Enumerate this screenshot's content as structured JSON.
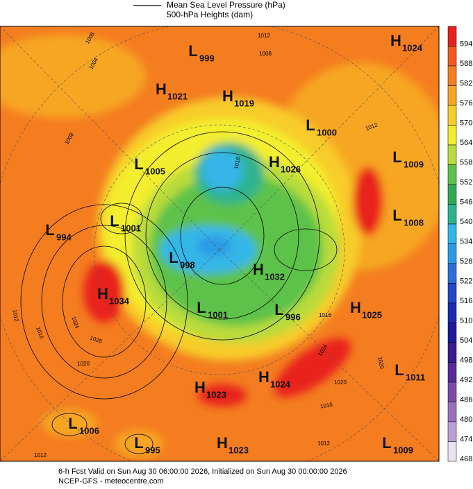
{
  "legend": {
    "pressure": "Mean Sea Level Pressure (hPa)",
    "heights": "500-hPa Heights (dam)"
  },
  "colorbar": [
    {
      "label": "594",
      "color": "#e8211e"
    },
    {
      "label": "588",
      "color": "#f4581c"
    },
    {
      "label": "582",
      "color": "#f47d20"
    },
    {
      "label": "576",
      "color": "#f6a623"
    },
    {
      "label": "570",
      "color": "#f8cc2a"
    },
    {
      "label": "564",
      "color": "#f3ee2d"
    },
    {
      "label": "558",
      "color": "#b9dc3b"
    },
    {
      "label": "552",
      "color": "#5dc24a"
    },
    {
      "label": "546",
      "color": "#31a852"
    },
    {
      "label": "540",
      "color": "#2db38f"
    },
    {
      "label": "534",
      "color": "#35b6e8"
    },
    {
      "label": "528",
      "color": "#2c9ae6"
    },
    {
      "label": "522",
      "color": "#2b6fd9"
    },
    {
      "label": "516",
      "color": "#2546c6"
    },
    {
      "label": "510",
      "color": "#1f2ab0"
    },
    {
      "label": "504",
      "color": "#1a1a9a"
    },
    {
      "label": "498",
      "color": "#3a1a8e"
    },
    {
      "label": "492",
      "color": "#5a2a9a"
    },
    {
      "label": "486",
      "color": "#7a4aa8"
    },
    {
      "label": "480",
      "color": "#9a70bc"
    },
    {
      "label": "474",
      "color": "#bda0d2"
    },
    {
      "label": "468",
      "color": "#ece2f2"
    }
  ],
  "centers": [
    {
      "type": "H",
      "value": "1024"
    },
    {
      "type": "L",
      "value": "999"
    },
    {
      "type": "H",
      "value": "1021"
    },
    {
      "type": "H",
      "value": "1019"
    },
    {
      "type": "L",
      "value": "1000"
    },
    {
      "type": "L",
      "value": "1009"
    },
    {
      "type": "L",
      "value": "1005"
    },
    {
      "type": "H",
      "value": "1026"
    },
    {
      "type": "L",
      "value": "1001"
    },
    {
      "type": "L",
      "value": "994"
    },
    {
      "type": "L",
      "value": "1008"
    },
    {
      "type": "L",
      "value": "998"
    },
    {
      "type": "H",
      "value": "1032"
    },
    {
      "type": "H",
      "value": "1034"
    },
    {
      "type": "L",
      "value": "1001"
    },
    {
      "type": "L",
      "value": "996"
    },
    {
      "type": "H",
      "value": "1025"
    },
    {
      "type": "L",
      "value": "1011"
    },
    {
      "type": "H",
      "value": "1024"
    },
    {
      "type": "H",
      "value": "1023"
    },
    {
      "type": "L",
      "value": "1006"
    },
    {
      "type": "L",
      "value": "995"
    },
    {
      "type": "H",
      "value": "1023"
    },
    {
      "type": "L",
      "value": "1009"
    }
  ],
  "contour_labels": [
    "1008",
    "1004",
    "1012",
    "1008",
    "1012",
    "1008",
    "1016",
    "1020",
    "1012",
    "1016",
    "1024",
    "1028",
    "1020",
    "1016",
    "1024",
    "1020",
    "1016",
    "1012",
    "1012"
  ],
  "footer": {
    "valid": "6-h Fcst Valid on Sun Aug 30 06:00:00 2026, Initialized on Sun Aug 30 00:00:00 2026",
    "source": "NCEP-GFS  - meteocentre.com"
  }
}
